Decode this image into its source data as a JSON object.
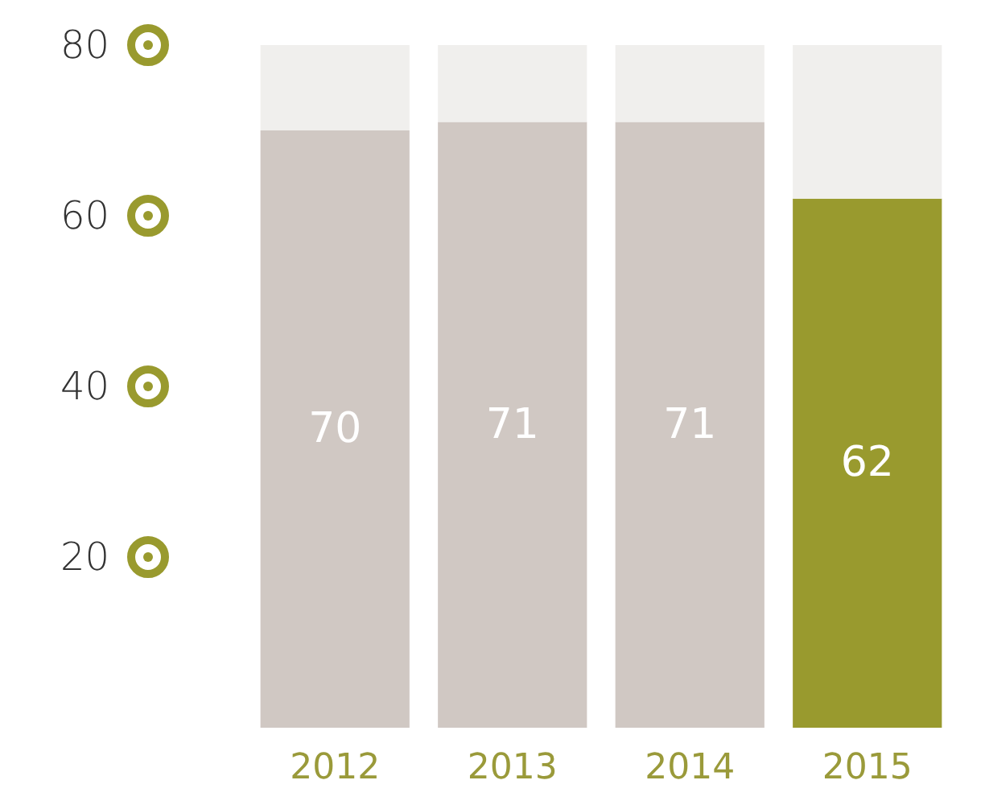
{
  "chart_data": {
    "type": "bar",
    "categories": [
      "2012",
      "2013",
      "2014",
      "2015"
    ],
    "stacked": true,
    "ylim": [
      0,
      80
    ],
    "yticks": [
      20,
      40,
      60,
      80
    ],
    "series": [
      {
        "colors": [
          "#d0c8c3",
          "#d0c8c3",
          "#d0c8c3",
          "#999a2e"
        ],
        "values": [
          70,
          71,
          71,
          62
        ],
        "value_labels": [
          "70",
          "71",
          "71",
          "62"
        ]
      },
      {
        "color": "#f0efed",
        "values": [
          10,
          9,
          9,
          18
        ]
      }
    ]
  }
}
